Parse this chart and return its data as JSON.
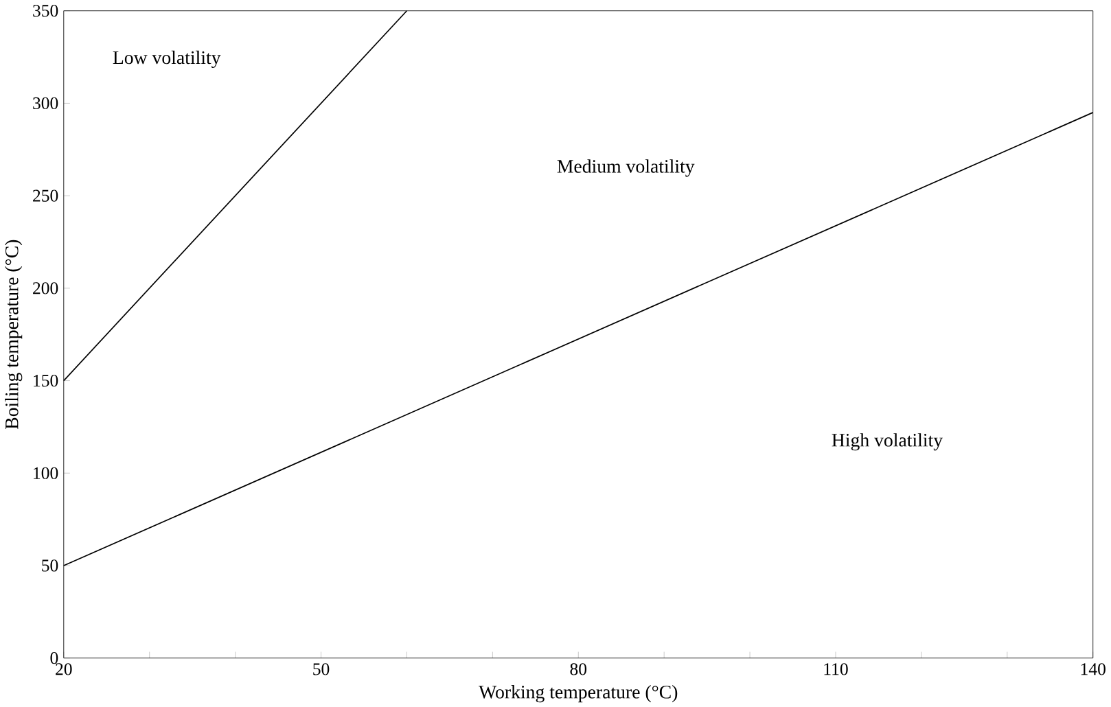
{
  "chart_data": {
    "type": "line",
    "xlabel": "Working temperature (°C)",
    "ylabel": "Boiling temperature (°C)",
    "series": [
      {
        "color": "#000000",
        "x": [
          20,
          60
        ],
        "values": [
          150,
          350
        ]
      },
      {
        "color": "#000000",
        "x": [
          20,
          140
        ],
        "values": [
          50,
          295
        ]
      }
    ],
    "xlim": [
      20,
      140
    ],
    "ylim": [
      0,
      350
    ],
    "xticks": [
      20,
      {
        "value": 30,
        "label": null
      },
      {
        "value": 40,
        "label": null
      },
      50,
      {
        "value": 60,
        "label": null
      },
      {
        "value": 70,
        "label": null
      },
      80,
      {
        "value": 90,
        "label": null
      },
      {
        "value": 100,
        "label": null
      },
      110,
      {
        "value": 120,
        "label": null
      },
      {
        "value": 130,
        "label": null
      },
      140
    ],
    "yticks": [
      0,
      50,
      100,
      150,
      200,
      250,
      300,
      350
    ],
    "annotations": [
      "Low volatility",
      "Medium volatility",
      "High volatility"
    ],
    "grid": false,
    "marker": "none",
    "line_style": "solid"
  }
}
